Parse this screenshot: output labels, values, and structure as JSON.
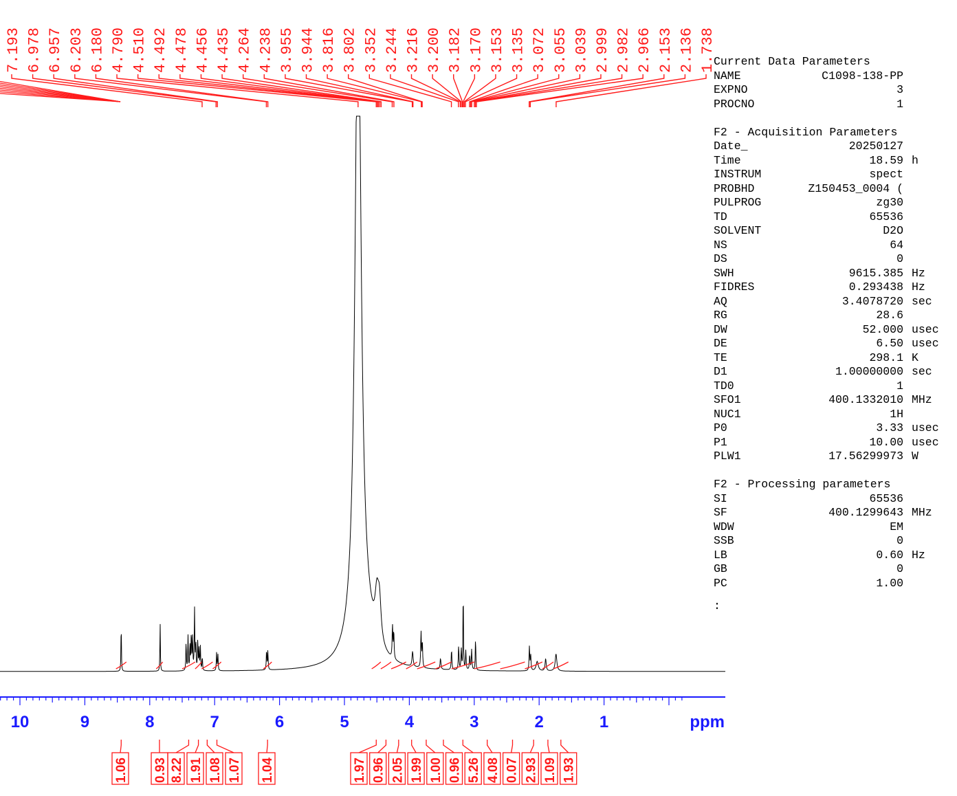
{
  "chart_data": {
    "type": "line",
    "xlabel": "ppm",
    "xlim": [
      10.3,
      0.0
    ],
    "x_ticks": [
      "10",
      "9",
      "8",
      "7",
      "6",
      "5",
      "4",
      "3",
      "2",
      "1"
    ],
    "peak_labels": [
      "7.193",
      "6.978",
      "6.957",
      "6.203",
      "6.180",
      "4.790",
      "4.510",
      "4.492",
      "4.478",
      "4.456",
      "4.435",
      "4.264",
      "4.238",
      "3.955",
      "3.944",
      "3.816",
      "3.802",
      "3.352",
      "3.244",
      "3.216",
      "3.200",
      "3.182",
      "3.170",
      "3.153",
      "3.135",
      "3.072",
      "3.055",
      "3.039",
      "2.999",
      "2.982",
      "2.966",
      "2.153",
      "2.136",
      "1.738"
    ],
    "integrals": [
      {
        "label": "1.06",
        "from": 8.52,
        "to": 8.36
      },
      {
        "label": "0.93",
        "from": 7.9,
        "to": 7.8
      },
      {
        "label": "8.22",
        "from": 7.5,
        "to": 7.3
      },
      {
        "label": "1.91",
        "from": 7.3,
        "to": 7.2
      },
      {
        "label": "1.08",
        "from": 7.2,
        "to": 7.03
      },
      {
        "label": "1.07",
        "from": 7.03,
        "to": 6.9
      },
      {
        "label": "1.04",
        "from": 6.25,
        "to": 6.12
      },
      {
        "label": "1.97",
        "from": 4.58,
        "to": 4.44
      },
      {
        "label": "0.96",
        "from": 4.44,
        "to": 4.28
      },
      {
        "label": "2.05",
        "from": 4.28,
        "to": 4.05
      },
      {
        "label": "1.99",
        "from": 4.05,
        "to": 3.88
      },
      {
        "label": "1.00",
        "from": 3.88,
        "to": 3.6
      },
      {
        "label": "0.96",
        "from": 3.6,
        "to": 3.35
      },
      {
        "label": "5.26",
        "from": 3.35,
        "to": 3.0
      },
      {
        "label": "4.08",
        "from": 3.0,
        "to": 2.6
      },
      {
        "label": "0.07",
        "from": 2.6,
        "to": 2.22
      },
      {
        "label": "2.93",
        "from": 2.22,
        "to": 1.95
      },
      {
        "label": "1.09",
        "from": 1.95,
        "to": 1.78
      },
      {
        "label": "1.93",
        "from": 1.78,
        "to": 1.55
      }
    ]
  },
  "parameters": {
    "current": {
      "title": "Current Data Parameters",
      "rows": [
        {
          "key": "NAME",
          "value": "C1098-138-PP",
          "unit": ""
        },
        {
          "key": "EXPNO",
          "value": "3",
          "unit": ""
        },
        {
          "key": "PROCNO",
          "value": "1",
          "unit": ""
        }
      ]
    },
    "acquisition": {
      "title": "F2 - Acquisition Parameters",
      "rows": [
        {
          "key": "Date_",
          "value": "20250127",
          "unit": ""
        },
        {
          "key": "Time",
          "value": "18.59",
          "unit": "h"
        },
        {
          "key": "INSTRUM",
          "value": "spect",
          "unit": ""
        },
        {
          "key": "PROBHD",
          "value": "Z150453_0004 (",
          "unit": ""
        },
        {
          "key": "PULPROG",
          "value": "zg30",
          "unit": ""
        },
        {
          "key": "TD",
          "value": "65536",
          "unit": ""
        },
        {
          "key": "SOLVENT",
          "value": "D2O",
          "unit": ""
        },
        {
          "key": "NS",
          "value": "64",
          "unit": ""
        },
        {
          "key": "DS",
          "value": "0",
          "unit": ""
        },
        {
          "key": "SWH",
          "value": "9615.385",
          "unit": "Hz"
        },
        {
          "key": "FIDRES",
          "value": "0.293438",
          "unit": "Hz"
        },
        {
          "key": "AQ",
          "value": "3.4078720",
          "unit": "sec"
        },
        {
          "key": "RG",
          "value": "28.6",
          "unit": ""
        },
        {
          "key": "DW",
          "value": "52.000",
          "unit": "usec"
        },
        {
          "key": "DE",
          "value": "6.50",
          "unit": "usec"
        },
        {
          "key": "TE",
          "value": "298.1",
          "unit": "K"
        },
        {
          "key": "D1",
          "value": "1.00000000",
          "unit": "sec"
        },
        {
          "key": "TD0",
          "value": "1",
          "unit": ""
        },
        {
          "key": "SFO1",
          "value": "400.1332010",
          "unit": "MHz"
        },
        {
          "key": "NUC1",
          "value": "1H",
          "unit": ""
        },
        {
          "key": "P0",
          "value": "3.33",
          "unit": "usec"
        },
        {
          "key": "P1",
          "value": "10.00",
          "unit": "usec"
        },
        {
          "key": "PLW1",
          "value": "17.56299973",
          "unit": "W"
        }
      ]
    },
    "processing": {
      "title": "F2 - Processing parameters",
      "rows": [
        {
          "key": "SI",
          "value": "65536",
          "unit": ""
        },
        {
          "key": "SF",
          "value": "400.1299643",
          "unit": "MHz"
        },
        {
          "key": "WDW",
          "value": "EM",
          "unit": ""
        },
        {
          "key": "SSB",
          "value": "0",
          "unit": ""
        },
        {
          "key": "LB",
          "value": "0.60",
          "unit": "Hz"
        },
        {
          "key": "GB",
          "value": "0",
          "unit": ""
        },
        {
          "key": "PC",
          "value": "1.00",
          "unit": ""
        }
      ]
    },
    "trailing_mark": ":"
  },
  "colors": {
    "spectrum": "#000000",
    "annotation": "#ff1a1a",
    "axis": "#1a1aff"
  }
}
